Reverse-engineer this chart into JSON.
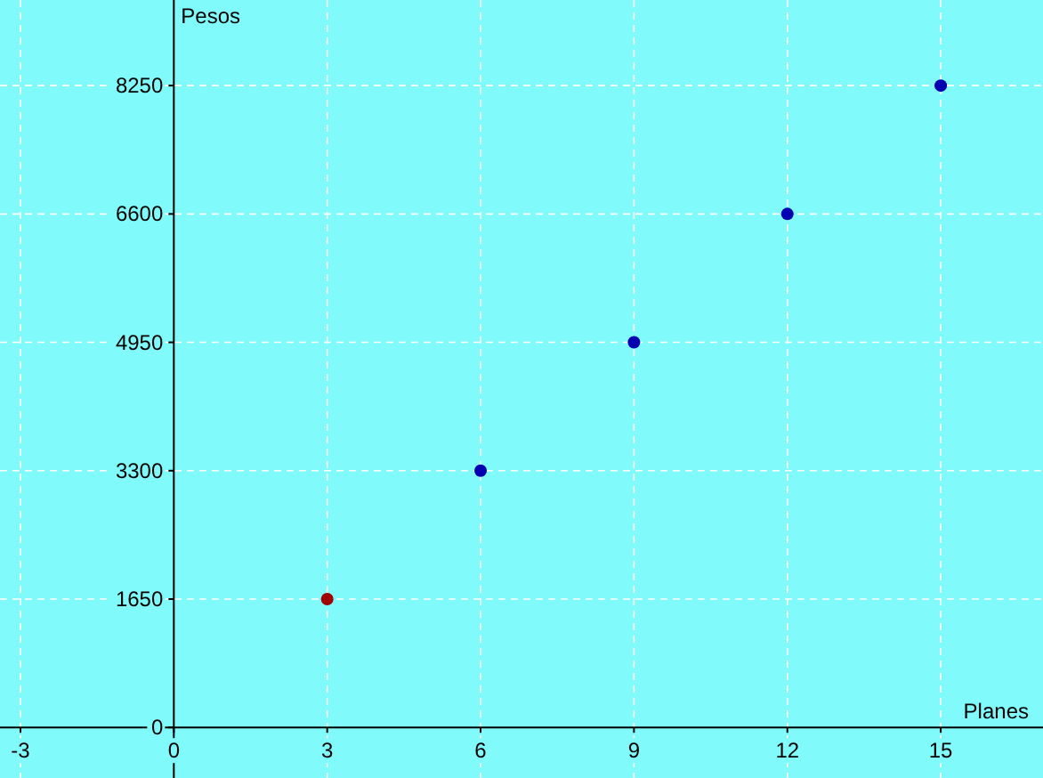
{
  "chart_data": {
    "type": "scatter",
    "xlabel": "Planes",
    "ylabel": "Pesos",
    "series": [
      {
        "color": "#a00000",
        "x": [
          3
        ],
        "values": [
          1650
        ]
      },
      {
        "color": "#0000b0",
        "x": [
          6,
          9,
          12,
          15
        ],
        "values": [
          3300,
          4950,
          6600,
          8250
        ]
      }
    ],
    "xlim": [
      -3.4,
      17
    ],
    "ylim": [
      -650,
      9350
    ],
    "xticks": [
      -3,
      0,
      3,
      6,
      9,
      12,
      15
    ],
    "yticks": [
      0,
      1650,
      3300,
      4950,
      6600,
      8250
    ],
    "grid": true,
    "marker": "circle"
  }
}
